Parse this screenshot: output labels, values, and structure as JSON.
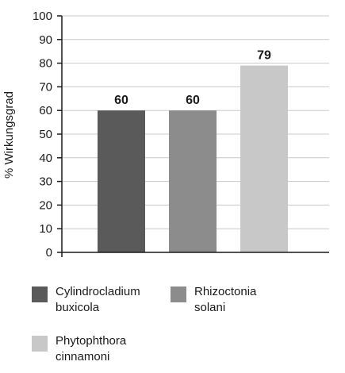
{
  "chart_data": {
    "type": "bar",
    "categories": [
      "Cylindrocladium\nbuxicola",
      "Rhizoctonia\nsolani",
      "Phytophthora\ncinnamoni"
    ],
    "values": [
      60,
      60,
      79
    ],
    "data_labels": [
      "60",
      "60",
      "79"
    ],
    "colors": [
      "#5a5a5a",
      "#8c8c8c",
      "#c8c8c8"
    ],
    "ylabel": "% Wirkungsgrad",
    "ylim": [
      0,
      100
    ],
    "yticks": [
      0,
      10,
      20,
      30,
      40,
      50,
      60,
      70,
      80,
      90,
      100
    ],
    "grid": true,
    "legend_position": "bottom"
  }
}
